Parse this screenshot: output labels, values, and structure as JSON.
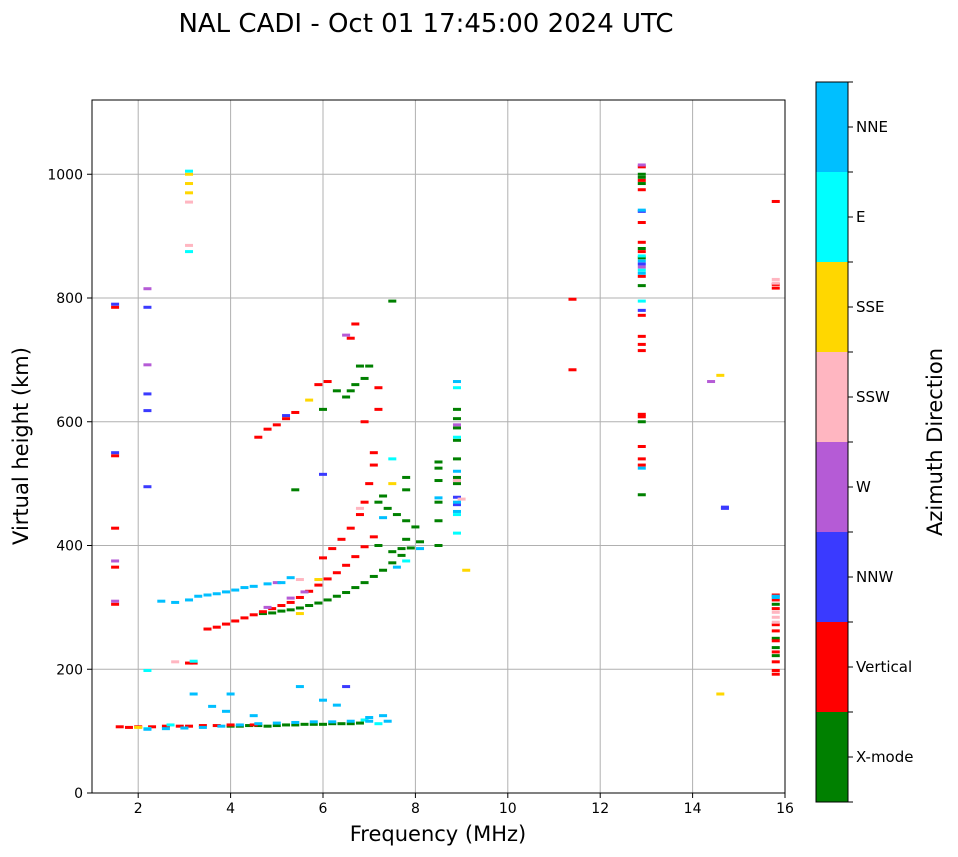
{
  "chart_data": {
    "type": "scatter",
    "title": "NAL CADI - Oct 01 17:45:00 2024 UTC",
    "xlabel": "Frequency (MHz)",
    "ylabel": "Virtual height (km)",
    "xlim": [
      1,
      16
    ],
    "ylim": [
      0,
      1120
    ],
    "xticks": [
      2,
      4,
      6,
      8,
      10,
      12,
      14,
      16
    ],
    "yticks": [
      0,
      200,
      400,
      600,
      800,
      1000
    ],
    "grid": true,
    "colorbar": {
      "label": "Azimuth Direction",
      "categories": [
        "X-mode",
        "Vertical",
        "NNW",
        "W",
        "SSW",
        "SSE",
        "E",
        "NNE"
      ],
      "colors": [
        "#008000",
        "#ff0000",
        "#3a3aff",
        "#b55bd6",
        "#ffb6c1",
        "#ffd700",
        "#00ffff",
        "#00bfff"
      ]
    },
    "series": [
      {
        "name": "X-mode",
        "points": [
          [
            4.0,
            108
          ],
          [
            4.2,
            108
          ],
          [
            4.4,
            109
          ],
          [
            4.6,
            109
          ],
          [
            4.8,
            108
          ],
          [
            5.0,
            109
          ],
          [
            5.2,
            110
          ],
          [
            5.4,
            110
          ],
          [
            5.6,
            111
          ],
          [
            5.8,
            111
          ],
          [
            6.0,
            111
          ],
          [
            6.2,
            112
          ],
          [
            6.4,
            112
          ],
          [
            6.6,
            112
          ],
          [
            6.8,
            113
          ],
          [
            4.7,
            290
          ],
          [
            4.9,
            291
          ],
          [
            5.1,
            294
          ],
          [
            5.3,
            296
          ],
          [
            5.5,
            299
          ],
          [
            5.7,
            303
          ],
          [
            5.9,
            307
          ],
          [
            6.1,
            312
          ],
          [
            6.3,
            318
          ],
          [
            6.5,
            324
          ],
          [
            6.7,
            332
          ],
          [
            6.9,
            340
          ],
          [
            7.1,
            350
          ],
          [
            7.3,
            360
          ],
          [
            7.5,
            372
          ],
          [
            7.7,
            384
          ],
          [
            7.9,
            396
          ],
          [
            8.1,
            406
          ],
          [
            8.5,
            535
          ],
          [
            8.5,
            525
          ],
          [
            8.5,
            505
          ],
          [
            8.5,
            470
          ],
          [
            8.5,
            440
          ],
          [
            8.5,
            400
          ],
          [
            8.9,
            620
          ],
          [
            8.9,
            605
          ],
          [
            8.9,
            590
          ],
          [
            8.9,
            570
          ],
          [
            8.9,
            540
          ],
          [
            8.9,
            510
          ],
          [
            8.9,
            505
          ],
          [
            8.9,
            500
          ],
          [
            6.5,
            640
          ],
          [
            6.6,
            650
          ],
          [
            6.7,
            660
          ],
          [
            6.9,
            670
          ],
          [
            7.0,
            690
          ],
          [
            6.8,
            690
          ],
          [
            7.5,
            795
          ],
          [
            6.0,
            620
          ],
          [
            6.3,
            650
          ],
          [
            5.4,
            490
          ],
          [
            7.3,
            480
          ],
          [
            7.2,
            470
          ],
          [
            7.8,
            510
          ],
          [
            7.8,
            490
          ],
          [
            7.4,
            460
          ],
          [
            7.6,
            450
          ],
          [
            8.0,
            430
          ],
          [
            7.8,
            440
          ],
          [
            7.8,
            410
          ],
          [
            7.7,
            395
          ],
          [
            7.5,
            390
          ],
          [
            7.2,
            400
          ],
          [
            12.9,
            1000
          ],
          [
            12.9,
            995
          ],
          [
            12.9,
            985
          ],
          [
            12.9,
            880
          ],
          [
            12.9,
            865
          ],
          [
            12.9,
            820
          ],
          [
            12.9,
            600
          ],
          [
            12.9,
            482
          ],
          [
            15.8,
            250
          ],
          [
            15.8,
            235
          ],
          [
            15.8,
            222
          ],
          [
            15.8,
            305
          ]
        ]
      },
      {
        "name": "Vertical",
        "points": [
          [
            1.6,
            107
          ],
          [
            1.8,
            106
          ],
          [
            2.0,
            107
          ],
          [
            2.3,
            107
          ],
          [
            2.6,
            108
          ],
          [
            2.9,
            108
          ],
          [
            3.1,
            108
          ],
          [
            3.4,
            109
          ],
          [
            3.7,
            109
          ],
          [
            4.0,
            110
          ],
          [
            4.5,
            110
          ],
          [
            3.5,
            265
          ],
          [
            3.7,
            268
          ],
          [
            3.9,
            273
          ],
          [
            4.1,
            278
          ],
          [
            4.3,
            283
          ],
          [
            4.5,
            288
          ],
          [
            4.7,
            293
          ],
          [
            4.9,
            298
          ],
          [
            5.1,
            303
          ],
          [
            5.3,
            308
          ],
          [
            5.5,
            316
          ],
          [
            5.7,
            326
          ],
          [
            5.9,
            336
          ],
          [
            6.1,
            346
          ],
          [
            6.3,
            356
          ],
          [
            6.5,
            368
          ],
          [
            6.7,
            382
          ],
          [
            6.9,
            398
          ],
          [
            7.1,
            414
          ],
          [
            6.0,
            380
          ],
          [
            6.2,
            395
          ],
          [
            6.4,
            410
          ],
          [
            6.6,
            428
          ],
          [
            6.8,
            450
          ],
          [
            6.9,
            470
          ],
          [
            7.0,
            500
          ],
          [
            7.1,
            530
          ],
          [
            7.1,
            550
          ],
          [
            7.2,
            620
          ],
          [
            7.2,
            655
          ],
          [
            6.9,
            600
          ],
          [
            4.6,
            575
          ],
          [
            4.8,
            588
          ],
          [
            5.0,
            595
          ],
          [
            5.2,
            605
          ],
          [
            5.4,
            615
          ],
          [
            5.9,
            660
          ],
          [
            6.1,
            665
          ],
          [
            6.6,
            735
          ],
          [
            6.7,
            758
          ],
          [
            1.5,
            428
          ],
          [
            1.5,
            365
          ],
          [
            1.5,
            305
          ],
          [
            1.5,
            545
          ],
          [
            1.5,
            785
          ],
          [
            3.1,
            210
          ],
          [
            3.2,
            210
          ],
          [
            12.9,
            1012
          ],
          [
            12.9,
            990
          ],
          [
            12.9,
            975
          ],
          [
            12.9,
            922
          ],
          [
            12.9,
            890
          ],
          [
            12.9,
            875
          ],
          [
            12.9,
            835
          ],
          [
            12.9,
            772
          ],
          [
            12.9,
            738
          ],
          [
            12.9,
            725
          ],
          [
            12.9,
            715
          ],
          [
            12.9,
            612
          ],
          [
            12.9,
            608
          ],
          [
            12.9,
            560
          ],
          [
            12.9,
            540
          ],
          [
            12.9,
            530
          ],
          [
            11.4,
            798
          ],
          [
            11.4,
            684
          ],
          [
            15.8,
            956
          ],
          [
            15.8,
            822
          ],
          [
            15.8,
            816
          ],
          [
            15.8,
            320
          ],
          [
            15.8,
            312
          ],
          [
            15.8,
            298
          ],
          [
            15.8,
            272
          ],
          [
            15.8,
            262
          ],
          [
            15.8,
            246
          ],
          [
            15.8,
            228
          ],
          [
            15.8,
            212
          ],
          [
            15.8,
            198
          ],
          [
            15.8,
            192
          ]
        ]
      },
      {
        "name": "NNW",
        "points": [
          [
            1.5,
            790
          ],
          [
            1.5,
            550
          ],
          [
            2.2,
            495
          ],
          [
            2.2,
            618
          ],
          [
            2.2,
            645
          ],
          [
            2.2,
            785
          ],
          [
            6.0,
            515
          ],
          [
            5.2,
            610
          ],
          [
            8.9,
            478
          ],
          [
            8.9,
            466
          ],
          [
            12.9,
            780
          ],
          [
            12.9,
            855
          ],
          [
            12.9,
            940
          ],
          [
            14.7,
            462
          ],
          [
            14.7,
            460
          ],
          [
            6.5,
            172
          ]
        ]
      },
      {
        "name": "W",
        "points": [
          [
            2.2,
            815
          ],
          [
            2.2,
            692
          ],
          [
            5.0,
            340
          ],
          [
            5.3,
            315
          ],
          [
            5.6,
            325
          ],
          [
            4.8,
            300
          ],
          [
            6.5,
            740
          ],
          [
            8.9,
            595
          ],
          [
            12.9,
            1015
          ],
          [
            12.9,
            850
          ],
          [
            14.4,
            665
          ],
          [
            1.5,
            310
          ],
          [
            1.5,
            375
          ]
        ]
      },
      {
        "name": "SSW",
        "points": [
          [
            3.1,
            955
          ],
          [
            3.1,
            885
          ],
          [
            9.0,
            475
          ],
          [
            8.9,
            505
          ],
          [
            6.8,
            460
          ],
          [
            5.5,
            345
          ],
          [
            2.8,
            212
          ],
          [
            15.8,
            830
          ],
          [
            15.8,
            824
          ],
          [
            15.8,
            292
          ],
          [
            15.8,
            284
          ],
          [
            15.8,
            276
          ]
        ]
      },
      {
        "name": "SSE",
        "points": [
          [
            3.1,
            970
          ],
          [
            3.1,
            985
          ],
          [
            3.1,
            1000
          ],
          [
            2.0,
            106
          ],
          [
            5.9,
            345
          ],
          [
            5.5,
            290
          ],
          [
            7.5,
            500
          ],
          [
            9.1,
            360
          ],
          [
            5.7,
            635
          ],
          [
            14.6,
            675
          ],
          [
            14.6,
            160
          ]
        ]
      },
      {
        "name": "E",
        "points": [
          [
            3.1,
            1005
          ],
          [
            3.1,
            875
          ],
          [
            2.2,
            198
          ],
          [
            3.2,
            213
          ],
          [
            7.5,
            540
          ],
          [
            7.8,
            375
          ],
          [
            8.9,
            575
          ],
          [
            8.9,
            420
          ],
          [
            8.9,
            450
          ],
          [
            6.9,
            118
          ],
          [
            7.2,
            112
          ],
          [
            12.9,
            868
          ],
          [
            12.9,
            845
          ],
          [
            12.9,
            795
          ],
          [
            8.9,
            655
          ],
          [
            2.7,
            110
          ],
          [
            2.2,
            104
          ]
        ]
      },
      {
        "name": "NNE",
        "points": [
          [
            2.5,
            310
          ],
          [
            2.8,
            308
          ],
          [
            3.1,
            312
          ],
          [
            3.3,
            318
          ],
          [
            3.5,
            320
          ],
          [
            3.7,
            322
          ],
          [
            3.9,
            325
          ],
          [
            4.1,
            328
          ],
          [
            4.3,
            332
          ],
          [
            4.5,
            334
          ],
          [
            4.8,
            338
          ],
          [
            5.1,
            340
          ],
          [
            5.3,
            348
          ],
          [
            2.2,
            103
          ],
          [
            2.6,
            104
          ],
          [
            3.0,
            105
          ],
          [
            3.4,
            106
          ],
          [
            3.8,
            108
          ],
          [
            4.2,
            110
          ],
          [
            4.6,
            112
          ],
          [
            5.0,
            113
          ],
          [
            5.4,
            114
          ],
          [
            5.8,
            115
          ],
          [
            6.2,
            115
          ],
          [
            6.6,
            116
          ],
          [
            7.0,
            116
          ],
          [
            7.4,
            116
          ],
          [
            3.2,
            160
          ],
          [
            3.6,
            140
          ],
          [
            3.9,
            132
          ],
          [
            4.0,
            160
          ],
          [
            4.5,
            125
          ],
          [
            5.5,
            172
          ],
          [
            6.0,
            150
          ],
          [
            6.3,
            142
          ],
          [
            7.0,
            122
          ],
          [
            7.3,
            125
          ],
          [
            8.9,
            665
          ],
          [
            8.9,
            520
          ],
          [
            8.9,
            470
          ],
          [
            8.9,
            455
          ],
          [
            8.5,
            477
          ],
          [
            7.3,
            445
          ],
          [
            7.6,
            365
          ],
          [
            8.1,
            395
          ],
          [
            12.9,
            942
          ],
          [
            12.9,
            860
          ],
          [
            12.9,
            840
          ],
          [
            12.9,
            525
          ],
          [
            15.8,
            318
          ],
          [
            15.8,
            316
          ]
        ]
      }
    ]
  }
}
